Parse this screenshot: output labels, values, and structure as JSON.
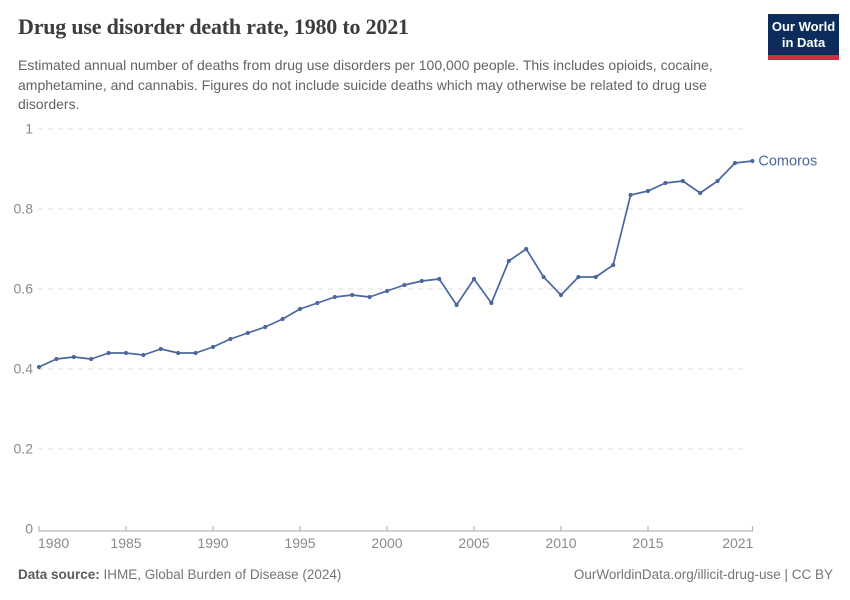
{
  "header": {
    "title": "Drug use disorder death rate, 1980 to 2021",
    "subtitle": "Estimated annual number of deaths from drug use disorders per 100,000 people. This includes opioids, cocaine, amphetamine, and cannabis. Figures do not include suicide deaths which may otherwise be related to drug use disorders.",
    "logo": {
      "line1": "Our World",
      "line2": "in Data",
      "bg_color": "#0c2d5b",
      "accent_color": "#d12b3f"
    }
  },
  "chart_data": {
    "type": "line",
    "title": "Drug use disorder death rate, 1980 to 2021",
    "xlabel": "",
    "ylabel": "",
    "ylim": [
      0,
      1
    ],
    "yticks": [
      0,
      0.2,
      0.4,
      0.6,
      0.8,
      1
    ],
    "ytick_labels": [
      "0",
      "0.2",
      "0.4",
      "0.6",
      "0.8",
      "1"
    ],
    "xticks": [
      1980,
      1985,
      1990,
      1995,
      2000,
      2005,
      2010,
      2015,
      2021
    ],
    "xtick_labels": [
      "1980",
      "1985",
      "1990",
      "1995",
      "2000",
      "2005",
      "2010",
      "2015",
      "2021"
    ],
    "grid": "horizontal-dashed",
    "legend_position": "end-of-line-label",
    "series": [
      {
        "name": "Comoros",
        "color": "#4a679e",
        "x": [
          1980,
          1981,
          1982,
          1983,
          1984,
          1985,
          1986,
          1987,
          1988,
          1989,
          1990,
          1991,
          1992,
          1993,
          1994,
          1995,
          1996,
          1997,
          1998,
          1999,
          2000,
          2001,
          2002,
          2003,
          2004,
          2005,
          2006,
          2007,
          2008,
          2009,
          2010,
          2011,
          2012,
          2013,
          2014,
          2015,
          2016,
          2017,
          2018,
          2019,
          2020,
          2021
        ],
        "values": [
          0.405,
          0.425,
          0.43,
          0.425,
          0.44,
          0.44,
          0.435,
          0.45,
          0.44,
          0.44,
          0.455,
          0.475,
          0.49,
          0.505,
          0.525,
          0.55,
          0.565,
          0.58,
          0.585,
          0.58,
          0.595,
          0.61,
          0.62,
          0.625,
          0.56,
          0.625,
          0.565,
          0.67,
          0.7,
          0.63,
          0.585,
          0.63,
          0.63,
          0.66,
          0.835,
          0.845,
          0.865,
          0.87,
          0.84,
          0.87,
          0.915,
          0.92
        ]
      }
    ],
    "colors": {
      "grid_line": "#dedede",
      "axis_line": "#a8a8a8",
      "tick_label": "#8a8a8a"
    }
  },
  "footer": {
    "source_label": "Data source:",
    "source_value": " IHME, Global Burden of Disease (2024)",
    "credit": "OurWorldinData.org/illicit-drug-use | CC BY"
  }
}
